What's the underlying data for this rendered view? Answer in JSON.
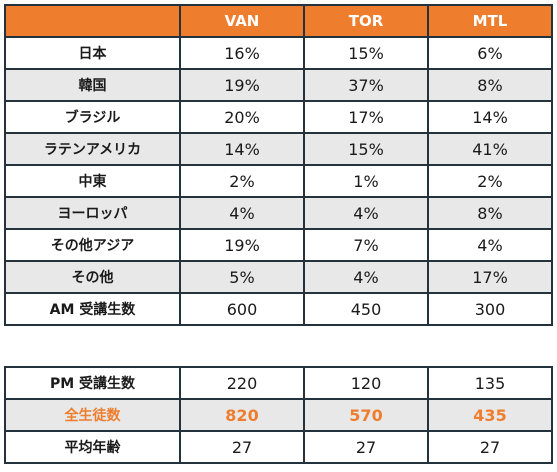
{
  "columns": [
    "VAN",
    "TOR",
    "MTL"
  ],
  "rows": [
    {
      "label": "日本",
      "values": [
        "16%",
        "15%",
        "6%"
      ]
    },
    {
      "label": "韓国",
      "values": [
        "19%",
        "37%",
        "8%"
      ]
    },
    {
      "label": "ブラジル",
      "values": [
        "20%",
        "17%",
        "14%"
      ]
    },
    {
      "label": "ラテンアメリカ",
      "values": [
        "14%",
        "15%",
        "41%"
      ]
    },
    {
      "label": "中東",
      "values": [
        "2%",
        "1%",
        "2%"
      ]
    },
    {
      "label": "ヨーロッパ",
      "values": [
        "4%",
        "4%",
        "8%"
      ]
    },
    {
      "label": "その他アジア",
      "values": [
        "19%",
        "7%",
        "4%"
      ]
    },
    {
      "label": "その他",
      "values": [
        "5%",
        "4%",
        "17%"
      ]
    },
    {
      "label": "AM 受講生数",
      "values": [
        "600",
        "450",
        "300"
      ]
    }
  ],
  "summary": [
    {
      "label": "PM 受講生数",
      "values": [
        "220",
        "120",
        "135"
      ]
    },
    {
      "label": "全生徒数",
      "values": [
        "820",
        "570",
        "435"
      ]
    },
    {
      "label": "平均年齢",
      "values": [
        "27",
        "27",
        "27"
      ]
    }
  ],
  "colors": {
    "header": "#ee7e2e",
    "highlight": "#ee7e2e",
    "shade": "#e8e8e8",
    "border": "#24323e"
  }
}
